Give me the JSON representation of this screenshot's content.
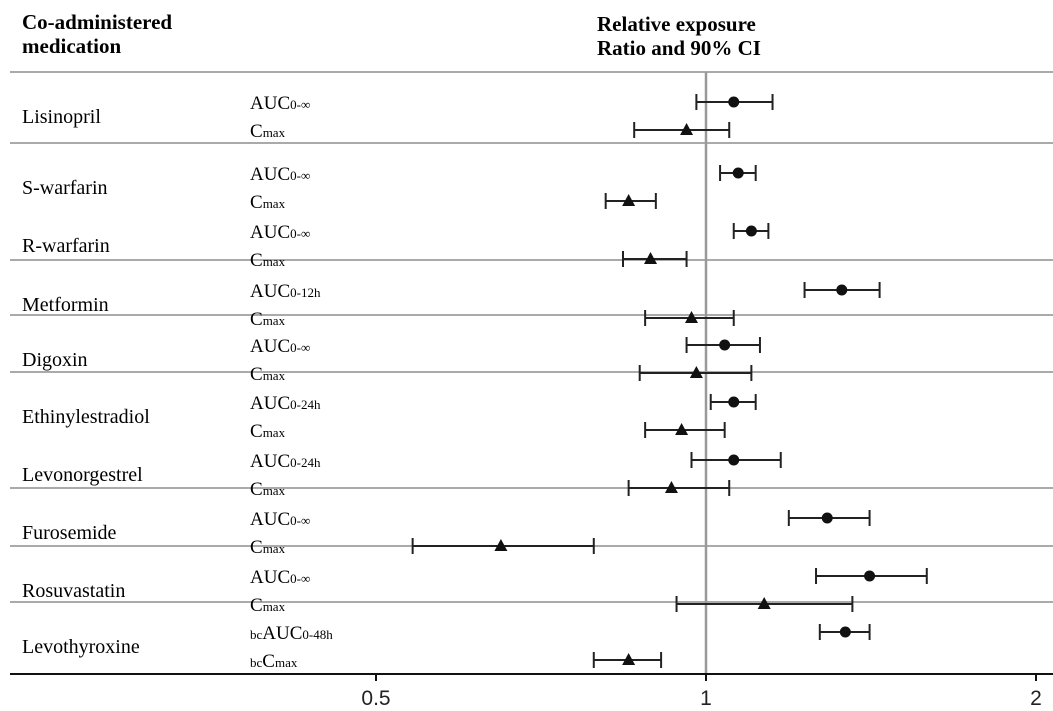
{
  "header": {
    "left_line1": "Co-administered",
    "left_line2": "medication",
    "right_line1": "Relative exposure",
    "right_line2": "Ratio and 90% CI"
  },
  "chart_data": {
    "type": "forest",
    "x_scale": "log",
    "xlim": [
      0.5,
      2
    ],
    "x_ticks": [
      0.5,
      1,
      2
    ],
    "x_tick_labels": [
      "0.5",
      "1",
      "2"
    ],
    "reference_line": 1,
    "grid": false,
    "markers": {
      "AUC": "circle",
      "Cmax": "triangle"
    },
    "groups": [
      {
        "drugs": [
          {
            "name": "Lisinopril",
            "rows": [
              {
                "pre": "",
                "base": "AUC",
                "sub": "0-∞",
                "marker": "circle",
                "point": 1.06,
                "lo": 0.98,
                "hi": 1.15
              },
              {
                "pre": "",
                "base": "C",
                "sub": "max",
                "marker": "triangle",
                "point": 0.96,
                "lo": 0.86,
                "hi": 1.05
              }
            ]
          }
        ]
      },
      {
        "drugs": [
          {
            "name": "S-warfarin",
            "rows": [
              {
                "pre": "",
                "base": "AUC",
                "sub": "0-∞",
                "marker": "circle",
                "point": 1.07,
                "lo": 1.03,
                "hi": 1.11
              },
              {
                "pre": "",
                "base": "C",
                "sub": "max",
                "marker": "triangle",
                "point": 0.85,
                "lo": 0.81,
                "hi": 0.9
              }
            ]
          },
          {
            "name": "R-warfarin",
            "rows": [
              {
                "pre": "",
                "base": "AUC",
                "sub": "0-∞",
                "marker": "circle",
                "point": 1.1,
                "lo": 1.06,
                "hi": 1.14
              },
              {
                "pre": "",
                "base": "C",
                "sub": "max",
                "marker": "triangle",
                "point": 0.89,
                "lo": 0.84,
                "hi": 0.96
              }
            ]
          }
        ]
      },
      {
        "drugs": [
          {
            "name": "Metformin",
            "rows": [
              {
                "pre": "",
                "base": "AUC",
                "sub": "0-12h",
                "marker": "circle",
                "point": 1.33,
                "lo": 1.23,
                "hi": 1.44
              },
              {
                "pre": "",
                "base": "C",
                "sub": "max",
                "marker": "triangle",
                "point": 0.97,
                "lo": 0.88,
                "hi": 1.06
              }
            ]
          }
        ]
      },
      {
        "drugs": [
          {
            "name": "Digoxin",
            "rows": [
              {
                "pre": "",
                "base": "AUC",
                "sub": "0-∞",
                "marker": "circle",
                "point": 1.04,
                "lo": 0.96,
                "hi": 1.12
              },
              {
                "pre": "",
                "base": "C",
                "sub": "max",
                "marker": "triangle",
                "point": 0.98,
                "lo": 0.87,
                "hi": 1.1
              }
            ]
          }
        ]
      },
      {
        "drugs": [
          {
            "name": "Ethinylestradiol",
            "rows": [
              {
                "pre": "",
                "base": "AUC",
                "sub": "0-24h",
                "marker": "circle",
                "point": 1.06,
                "lo": 1.01,
                "hi": 1.11
              },
              {
                "pre": "",
                "base": "C",
                "sub": "max",
                "marker": "triangle",
                "point": 0.95,
                "lo": 0.88,
                "hi": 1.04
              }
            ]
          },
          {
            "name": "Levonorgestrel",
            "rows": [
              {
                "pre": "",
                "base": "AUC",
                "sub": "0-24h",
                "marker": "circle",
                "point": 1.06,
                "lo": 0.97,
                "hi": 1.17
              },
              {
                "pre": "",
                "base": "C",
                "sub": "max",
                "marker": "triangle",
                "point": 0.93,
                "lo": 0.85,
                "hi": 1.05
              }
            ]
          }
        ]
      },
      {
        "drugs": [
          {
            "name": "Furosemide",
            "rows": [
              {
                "pre": "",
                "base": "AUC",
                "sub": "0-∞",
                "marker": "circle",
                "point": 1.29,
                "lo": 1.19,
                "hi": 1.41
              },
              {
                "pre": "",
                "base": "C",
                "sub": "max",
                "marker": "triangle",
                "point": 0.65,
                "lo": 0.54,
                "hi": 0.79
              }
            ]
          }
        ]
      },
      {
        "drugs": [
          {
            "name": "Rosuvastatin",
            "rows": [
              {
                "pre": "",
                "base": "AUC",
                "sub": "0-∞",
                "marker": "circle",
                "point": 1.41,
                "lo": 1.26,
                "hi": 1.59
              },
              {
                "pre": "",
                "base": "C",
                "sub": "max",
                "marker": "triangle",
                "point": 1.13,
                "lo": 0.94,
                "hi": 1.36
              }
            ]
          }
        ]
      },
      {
        "drugs": [
          {
            "name": "Levothyroxine",
            "rows": [
              {
                "pre": "bc",
                "base": "AUC",
                "sub": "0-48h",
                "marker": "circle",
                "point": 1.34,
                "lo": 1.27,
                "hi": 1.41
              },
              {
                "pre": "bc",
                "base": "C",
                "sub": "max",
                "marker": "triangle",
                "point": 0.85,
                "lo": 0.79,
                "hi": 0.91
              }
            ]
          }
        ]
      }
    ]
  }
}
